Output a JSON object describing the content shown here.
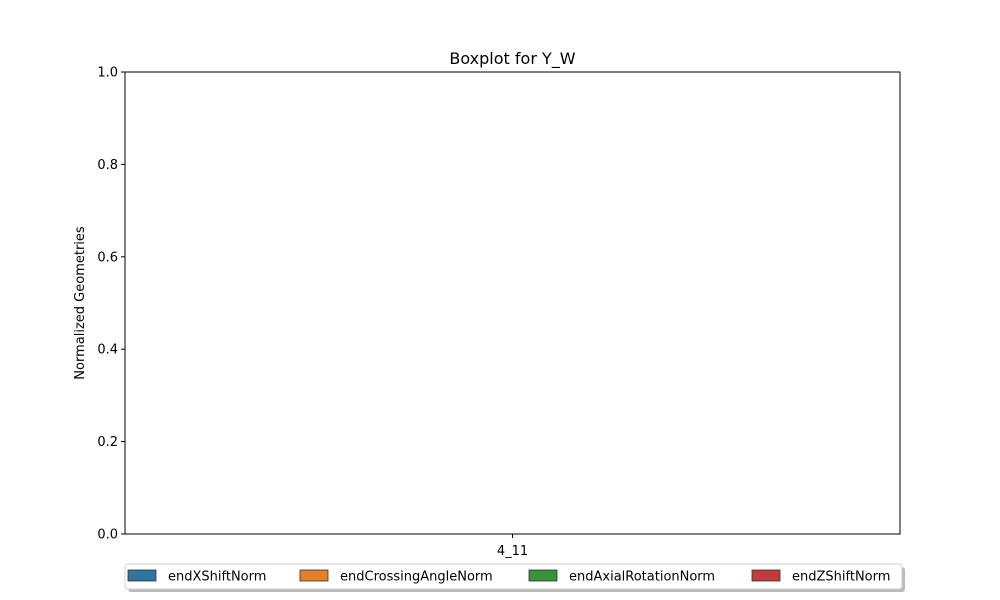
{
  "chart_data": {
    "type": "box",
    "title": "Boxplot for Y_W",
    "xlabel": "",
    "ylabel": "Normalized Geometries",
    "categories": [
      "4_11"
    ],
    "ylim": [
      0,
      1
    ],
    "yticks": [
      "0.0",
      "0.2",
      "0.4",
      "0.6",
      "0.8",
      "1.0"
    ],
    "grid": false,
    "legend_position": "bottom-center",
    "series": [
      {
        "name": "endXShiftNorm",
        "color": "#3274a1",
        "values": []
      },
      {
        "name": "endCrossingAngleNorm",
        "color": "#e1812c",
        "values": []
      },
      {
        "name": "endAxialRotationNorm",
        "color": "#3a923a",
        "values": []
      },
      {
        "name": "endZShiftNorm",
        "color": "#c03d3e",
        "values": []
      }
    ]
  }
}
